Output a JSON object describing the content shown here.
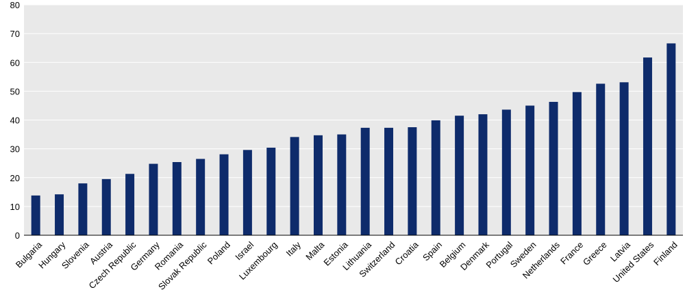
{
  "chart_data": {
    "type": "bar",
    "categories": [
      "Bulgaria",
      "Hungary",
      "Slovenia",
      "Austria",
      "Czech Republic",
      "Germany",
      "Romania",
      "Slovak Republic",
      "Poland",
      "Israel",
      "Luxembourg",
      "Italy",
      "Malta",
      "Estonia",
      "Lithuania",
      "Switzerland",
      "Croatia",
      "Spain",
      "Belgium",
      "Denmark",
      "Portugal",
      "Sweden",
      "Netherlands",
      "France",
      "Greece",
      "Latvia",
      "United States",
      "Finland"
    ],
    "values": [
      13.8,
      14.2,
      18.0,
      19.5,
      21.3,
      24.8,
      25.4,
      26.5,
      28.1,
      29.6,
      30.4,
      34.1,
      34.7,
      35.0,
      37.3,
      37.3,
      37.5,
      39.9,
      41.5,
      42.0,
      43.6,
      45.0,
      46.3,
      49.7,
      52.6,
      53.1,
      61.7,
      66.6
    ],
    "title": "",
    "xlabel": "",
    "ylabel": "",
    "ylim": [
      0,
      80
    ],
    "yticks": [
      "0",
      "10",
      "20",
      "30",
      "40",
      "50",
      "60",
      "70",
      "80"
    ],
    "grid": true,
    "colors": {
      "bar": "#0e2b6b",
      "plot_background": "#e9e9e9",
      "gridline": "#ffffff",
      "axis": "#000000"
    }
  }
}
